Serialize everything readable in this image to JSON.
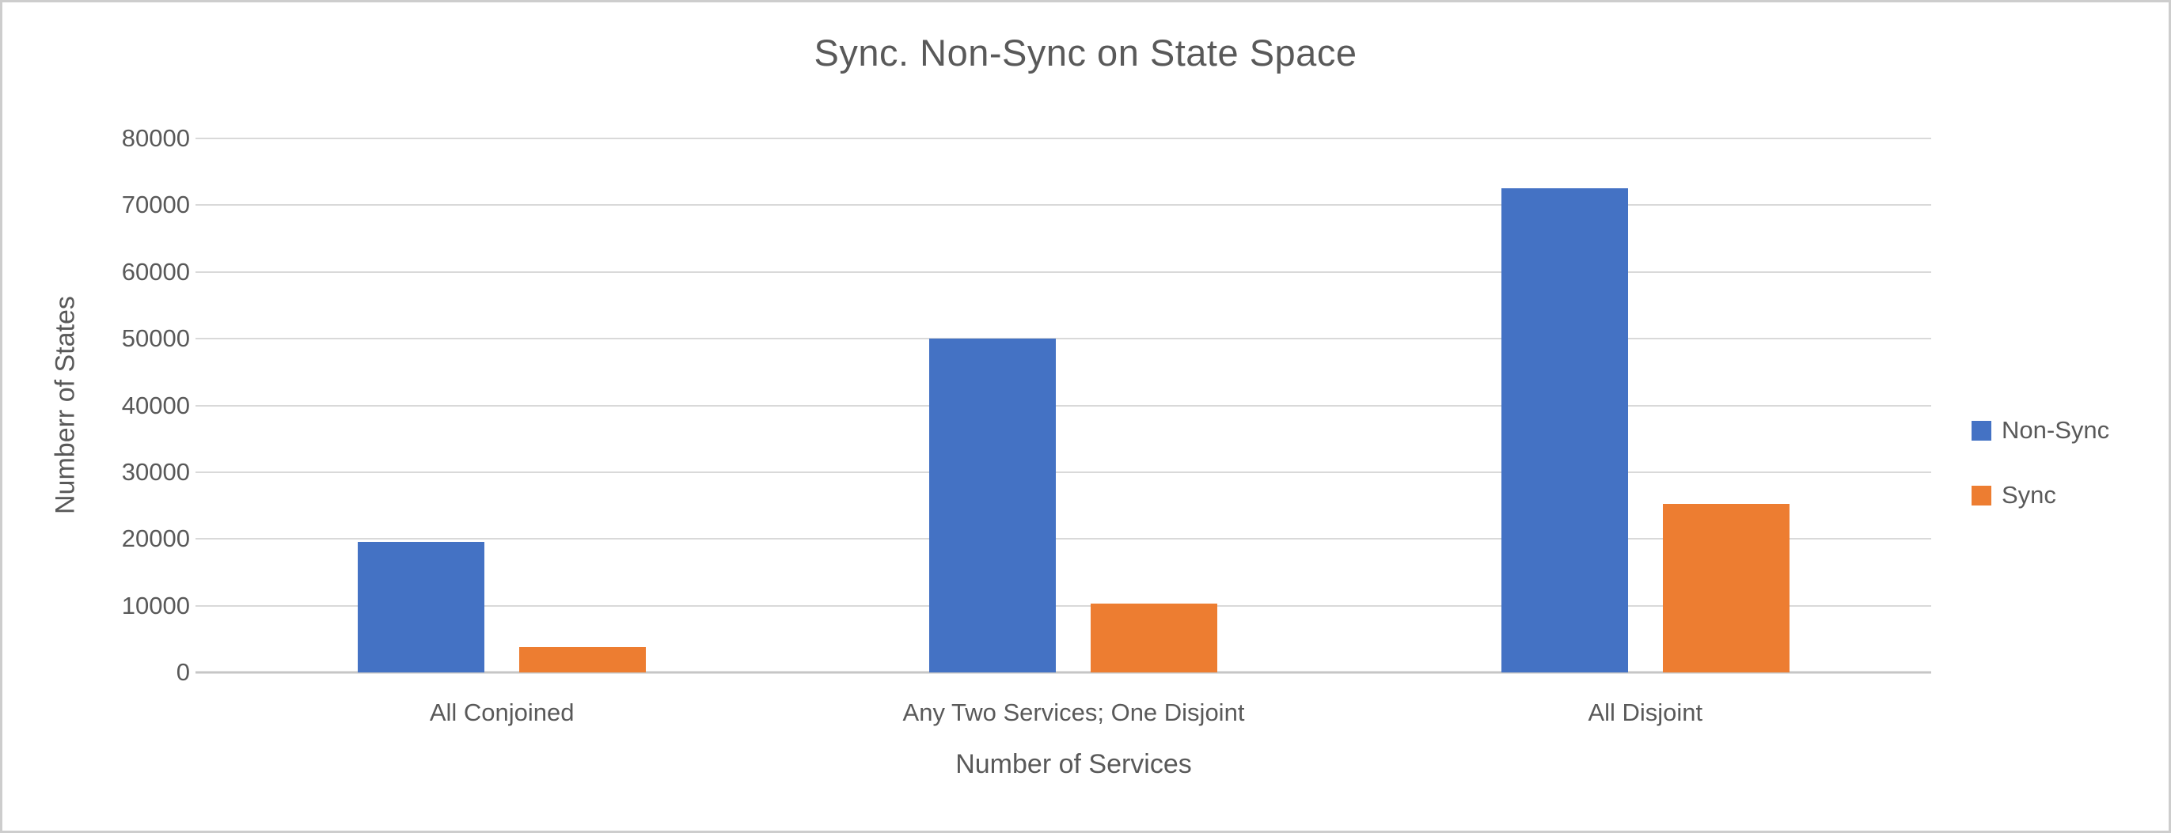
{
  "chart_data": {
    "type": "bar",
    "title": "Sync. Non-Sync on State Space",
    "xlabel": "Number of Services",
    "ylabel": "Numberr of States",
    "categories": [
      "All Conjoined",
      "Any Two Services; One Disjoint",
      "All Disjoint"
    ],
    "series": [
      {
        "name": "Non-Sync",
        "color": "#4472C4",
        "values": [
          19600,
          50000,
          72500
        ]
      },
      {
        "name": "Sync",
        "color": "#ED7D31",
        "values": [
          3800,
          10300,
          25200
        ]
      }
    ],
    "ylim": [
      0,
      80000
    ],
    "ytick_step": 10000,
    "yticks": [
      0,
      10000,
      20000,
      30000,
      40000,
      50000,
      60000,
      70000,
      80000
    ],
    "grid": "horizontal",
    "gridline_color": "#D9D9D9",
    "axis_line_color": "#C6C6C6",
    "text_color": "#595959",
    "legend_position": "right"
  }
}
